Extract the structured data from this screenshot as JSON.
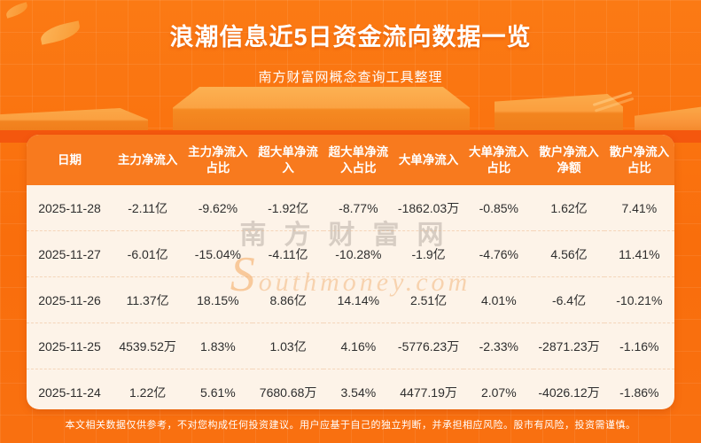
{
  "page": {
    "title": "浪潮信息近5日资金流向数据一览",
    "subtitle": "南方财富网概念查询工具整理",
    "disclaimer": "本文相关数据仅供参考，不对您构成任何投资建议。用户应基于自己的独立判断，并承担相应风险。股市有风险，投资需谨慎。"
  },
  "watermark": {
    "line1": "南方财富网",
    "line2": "Southmoney.com"
  },
  "colors": {
    "background": "#f97010",
    "accent_band": "#f4570e",
    "table_header_bg": "#f87a1e",
    "table_body_bg": "#fdf3e8",
    "header_text": "#ffffff",
    "body_text": "#2e2e2e"
  },
  "table": {
    "headers_display": [
      "日期",
      "主力净流入",
      "主力净流入\n占比",
      "超大单净流\n入",
      "超大单净流\n入占比",
      "大单净流入",
      "大单净流入\n占比",
      "散户净流入\n净额",
      "散户净流入\n占比"
    ]
  },
  "chart_data": {
    "type": "table",
    "title": "浪潮信息近5日资金流向数据一览",
    "columns": [
      "日期",
      "主力净流入",
      "主力净流入占比",
      "超大单净流入",
      "超大单净流入占比",
      "大单净流入",
      "大单净流入占比",
      "散户净流入净额",
      "散户净流入占比"
    ],
    "rows": [
      [
        "2025-11-28",
        "-2.11亿",
        "-9.62%",
        "-1.92亿",
        "-8.77%",
        "-1862.03万",
        "-0.85%",
        "1.62亿",
        "7.41%"
      ],
      [
        "2025-11-27",
        "-6.01亿",
        "-15.04%",
        "-4.11亿",
        "-10.28%",
        "-1.9亿",
        "-4.76%",
        "4.56亿",
        "11.41%"
      ],
      [
        "2025-11-26",
        "11.37亿",
        "18.15%",
        "8.86亿",
        "14.14%",
        "2.51亿",
        "4.01%",
        "-6.4亿",
        "-10.21%"
      ],
      [
        "2025-11-25",
        "4539.52万",
        "1.83%",
        "1.03亿",
        "4.16%",
        "-5776.23万",
        "-2.33%",
        "-2871.23万",
        "-1.16%"
      ],
      [
        "2025-11-24",
        "1.22亿",
        "5.61%",
        "7680.68万",
        "3.54%",
        "4477.19万",
        "2.07%",
        "-4026.12万",
        "-1.86%"
      ]
    ]
  }
}
